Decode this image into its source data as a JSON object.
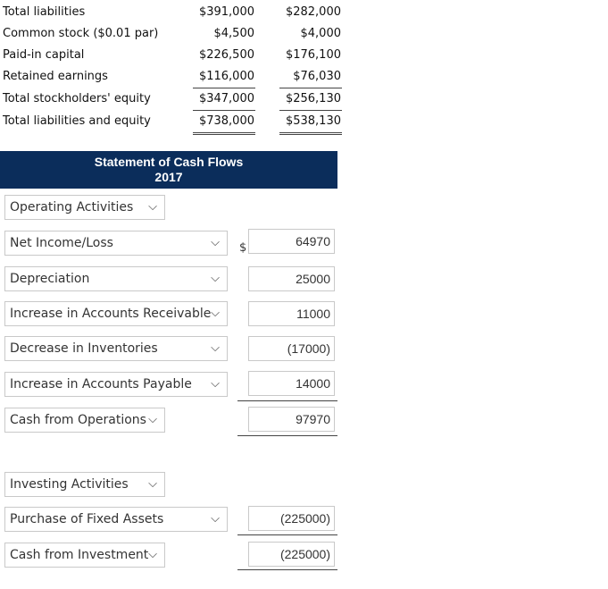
{
  "balance_sheet": {
    "rows": [
      {
        "label": "Total liabilities",
        "col1": "$391,000",
        "col2": "$282,000"
      },
      {
        "label": "Common stock ($0.01 par)",
        "col1": "$4,500",
        "col2": "$4,000"
      },
      {
        "label": "Paid-in capital",
        "col1": "$226,500",
        "col2": "$176,100"
      },
      {
        "label": "Retained earnings",
        "col1": "$116,000",
        "col2": "$76,030"
      },
      {
        "label": "Total stockholders' equity",
        "col1": "$347,000",
        "col2": "$256,130"
      },
      {
        "label": "Total liabilities and equity",
        "col1": "$738,000",
        "col2": "$538,130"
      }
    ]
  },
  "cash_flow": {
    "title": "Statement of Cash Flows",
    "year": "2017",
    "currency_symbol": "$",
    "operating_header": {
      "selected": "Operating Activities"
    },
    "operating_rows": [
      {
        "selected": "Net Income/Loss",
        "amount": "64970"
      },
      {
        "selected": "Depreciation",
        "amount": "25000"
      },
      {
        "selected": "Increase in Accounts Receivable",
        "amount": "11000"
      },
      {
        "selected": "Decrease in Inventories",
        "amount": "(17000)"
      },
      {
        "selected": "Increase in Accounts Payable",
        "amount": "14000"
      }
    ],
    "operating_total": {
      "selected": "Cash from Operations",
      "amount": "97970"
    },
    "investing_header": {
      "selected": "Investing Activities"
    },
    "investing_rows": [
      {
        "selected": "Purchase of Fixed Assets",
        "amount": "(225000)"
      }
    ],
    "investing_total": {
      "selected": "Cash from Investment",
      "amount": "(225000)"
    }
  },
  "icons": {
    "dropdown": "chevron-down-icon"
  }
}
